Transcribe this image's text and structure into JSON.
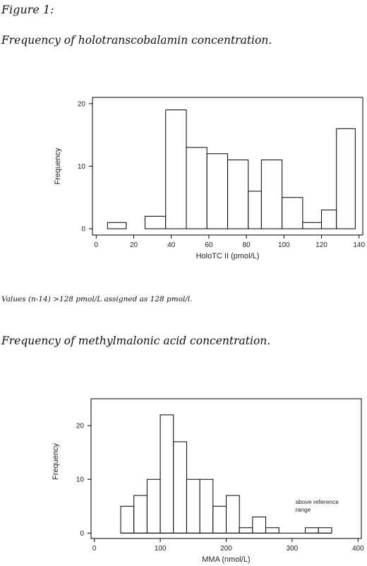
{
  "figure_label": "Figure 1:",
  "caption_1": "Frequency of holotranscobalamin concentration.",
  "note_1": "Values (n-14) >128 pmol/L assigned as 128 pmol/l.",
  "caption_2": "Frequency of methylmalonic acid concentration.",
  "chart_data": [
    {
      "type": "bar",
      "subtype": "histogram",
      "xlabel": "HoloTC II (pmol/L)",
      "ylabel": "Frequency",
      "bins": [
        {
          "x0": 6,
          "x1": 16,
          "value": 1
        },
        {
          "x0": 16,
          "x1": 26,
          "value": 0
        },
        {
          "x0": 26,
          "x1": 37,
          "value": 2
        },
        {
          "x0": 37,
          "x1": 48,
          "value": 19
        },
        {
          "x0": 48,
          "x1": 59,
          "value": 13
        },
        {
          "x0": 59,
          "x1": 70,
          "value": 12
        },
        {
          "x0": 70,
          "x1": 81,
          "value": 11
        },
        {
          "x0": 81,
          "x1": 88,
          "value": 6
        },
        {
          "x0": 88,
          "x1": 99,
          "value": 11
        },
        {
          "x0": 99,
          "x1": 110,
          "value": 5
        },
        {
          "x0": 110,
          "x1": 120,
          "value": 1
        },
        {
          "x0": 120,
          "x1": 128,
          "value": 3
        },
        {
          "x0": 128,
          "x1": 138,
          "value": 16
        }
      ],
      "xlim": [
        -2,
        142
      ],
      "ylim": [
        -1,
        21
      ],
      "xticks": [
        0,
        20,
        40,
        60,
        80,
        100,
        120,
        140
      ],
      "yticks": [
        0,
        10,
        20
      ],
      "grid": false
    },
    {
      "type": "bar",
      "subtype": "histogram",
      "xlabel": "MMA (nmol/L)",
      "ylabel": "Frequency",
      "bins": [
        {
          "x0": 40,
          "x1": 60,
          "value": 5
        },
        {
          "x0": 60,
          "x1": 80,
          "value": 7
        },
        {
          "x0": 80,
          "x1": 100,
          "value": 10
        },
        {
          "x0": 100,
          "x1": 120,
          "value": 22
        },
        {
          "x0": 120,
          "x1": 140,
          "value": 17
        },
        {
          "x0": 140,
          "x1": 160,
          "value": 10
        },
        {
          "x0": 160,
          "x1": 180,
          "value": 10
        },
        {
          "x0": 180,
          "x1": 200,
          "value": 5
        },
        {
          "x0": 200,
          "x1": 220,
          "value": 7
        },
        {
          "x0": 220,
          "x1": 240,
          "value": 1
        },
        {
          "x0": 240,
          "x1": 260,
          "value": 3
        },
        {
          "x0": 260,
          "x1": 280,
          "value": 1
        },
        {
          "x0": 280,
          "x1": 300,
          "value": 0
        },
        {
          "x0": 300,
          "x1": 320,
          "value": 0
        },
        {
          "x0": 320,
          "x1": 340,
          "value": 1
        },
        {
          "x0": 340,
          "x1": 360,
          "value": 1
        }
      ],
      "annotations": [
        "above reference",
        "range"
      ],
      "xlim": [
        -5,
        405
      ],
      "ylim": [
        -1,
        25
      ],
      "xticks": [
        0,
        100,
        200,
        300,
        400
      ],
      "yticks": [
        0,
        10,
        20
      ],
      "grid": false
    }
  ]
}
